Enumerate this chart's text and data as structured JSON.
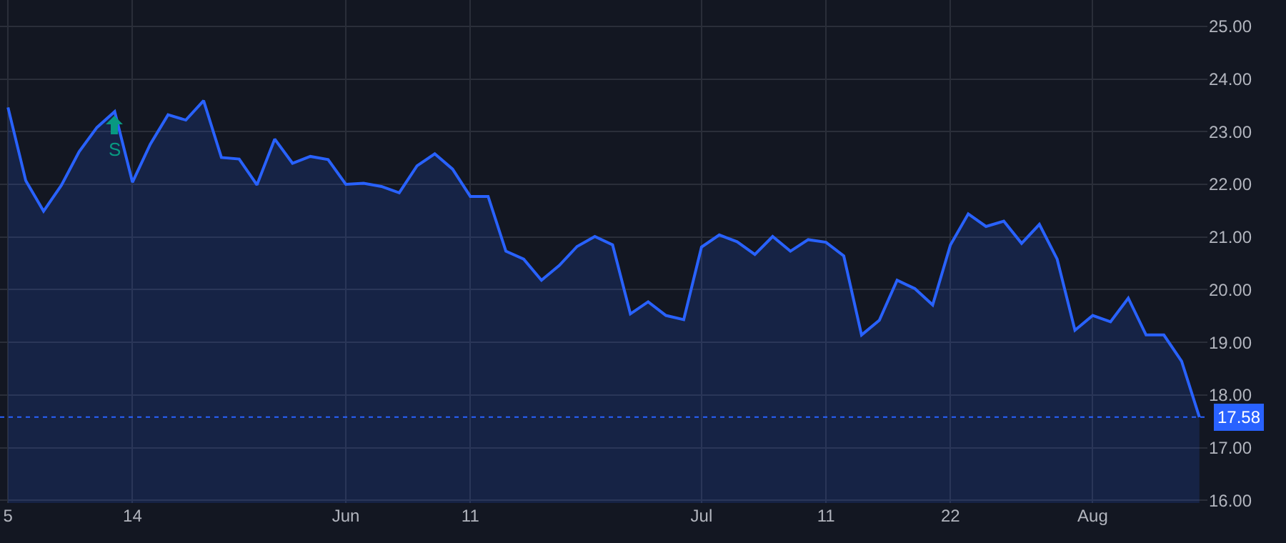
{
  "chart_data": {
    "type": "area",
    "categories": [
      "5",
      null,
      null,
      null,
      null,
      null,
      null,
      "14",
      null,
      null,
      null,
      null,
      null,
      null,
      null,
      null,
      null,
      null,
      null,
      "Jun",
      null,
      null,
      null,
      null,
      null,
      null,
      "11",
      null,
      null,
      null,
      null,
      null,
      null,
      null,
      null,
      null,
      null,
      null,
      null,
      "Jul",
      null,
      null,
      null,
      null,
      null,
      null,
      "11",
      null,
      null,
      null,
      null,
      null,
      null,
      "22",
      null,
      null,
      null,
      null,
      null,
      null,
      null,
      "Aug",
      null,
      null,
      null,
      null,
      null,
      null
    ],
    "series": [
      {
        "color": "#2962ff",
        "values": [
          23.46,
          22.07,
          21.49,
          21.98,
          22.62,
          23.08,
          23.38,
          22.04,
          22.76,
          23.32,
          23.22,
          23.59,
          22.51,
          22.48,
          21.99,
          22.86,
          22.4,
          22.53,
          22.47,
          22.0,
          22.02,
          21.96,
          21.84,
          22.35,
          22.58,
          22.29,
          21.77,
          21.77,
          20.73,
          20.58,
          20.18,
          20.46,
          20.82,
          21.01,
          20.85,
          19.54,
          19.77,
          19.51,
          19.43,
          20.81,
          21.04,
          20.91,
          20.67,
          21.01,
          20.73,
          20.95,
          20.9,
          20.64,
          19.14,
          19.42,
          20.18,
          20.02,
          19.71,
          20.85,
          21.44,
          21.2,
          21.3,
          20.88,
          21.24,
          20.58,
          19.23,
          19.51,
          19.39,
          19.84,
          19.14,
          19.14,
          18.64,
          17.58
        ]
      }
    ],
    "ylim": [
      15.95,
      25.5
    ],
    "yticks": [
      {
        "value": 16,
        "label": "16.00"
      },
      {
        "value": 17,
        "label": "17.00"
      },
      {
        "value": 18,
        "label": "18.00"
      },
      {
        "value": 19,
        "label": "19.00"
      },
      {
        "value": 20,
        "label": "20.00"
      },
      {
        "value": 21,
        "label": "21.00"
      },
      {
        "value": 22,
        "label": "22.00"
      },
      {
        "value": 23,
        "label": "23.00"
      },
      {
        "value": 24,
        "label": "24.00"
      },
      {
        "value": 25,
        "label": "25.00"
      }
    ],
    "grid": true,
    "marker": "none",
    "line_style": "solid",
    "ref_lines": [
      {
        "axis": "y",
        "value": 17.58,
        "label": "17.58",
        "color": "#2962ff",
        "line_style": "dotted"
      }
    ],
    "annotations": [
      {
        "text": "S",
        "y": 23.38
      }
    ]
  }
}
